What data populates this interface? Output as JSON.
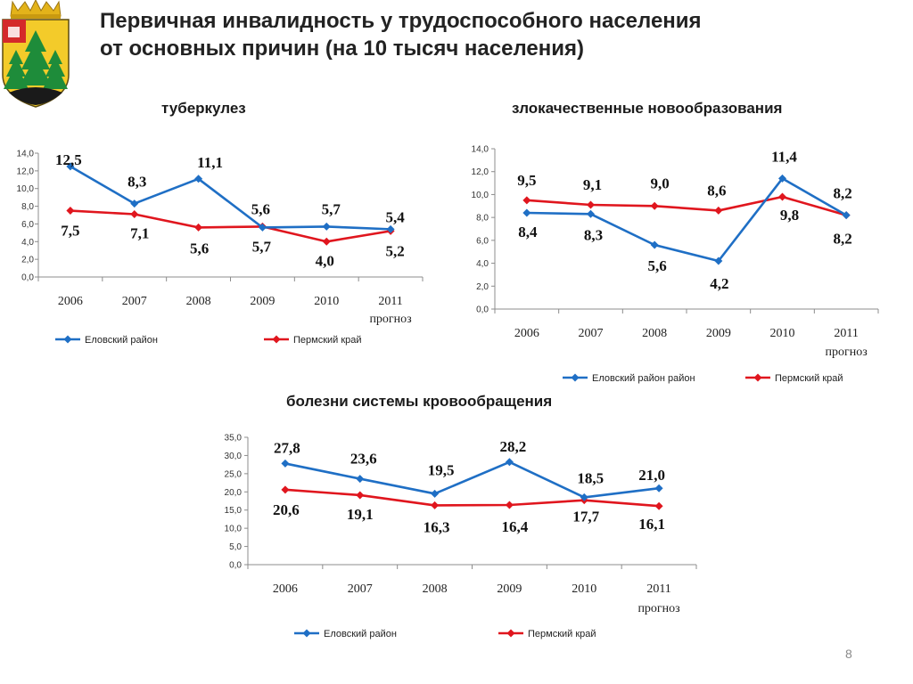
{
  "slide": {
    "title_lines": [
      "Первичная инвалидность у трудоспособного населения",
      "от основных причин (на 10 тысяч населения)"
    ],
    "page_number": "8"
  },
  "colors": {
    "blue": "#1F6FC5",
    "red": "#E0161E",
    "axis": "#8c8c8c"
  },
  "chart_data": [
    {
      "type": "line",
      "title": "туберкулез",
      "categories": [
        "2006",
        "2007",
        "2008",
        "2009",
        "2010",
        "2011"
      ],
      "category_sublabels": [
        "",
        "",
        "",
        "",
        "",
        "прогноз"
      ],
      "ylim": [
        0,
        14
      ],
      "y_ticks": [
        "0,0",
        "2,0",
        "4,0",
        "6,0",
        "8,0",
        "10,0",
        "12,0",
        "14,0"
      ],
      "grid": false,
      "legend_position": "bottom",
      "series": [
        {
          "name": "Еловский район",
          "values": [
            12.5,
            8.3,
            11.1,
            5.6,
            5.7,
            5.4
          ],
          "labels": [
            "12,5",
            "8,3",
            "11,1",
            "5,6",
            "5,7",
            "5,4"
          ]
        },
        {
          "name": "Пермский край",
          "values": [
            7.5,
            7.1,
            5.6,
            5.7,
            4.0,
            5.2
          ],
          "labels": [
            "7,5",
            "7,1",
            "5,6",
            "5,7",
            "4,0",
            "5,2"
          ]
        }
      ]
    },
    {
      "type": "line",
      "title": "злокачественные новообразования",
      "categories": [
        "2006",
        "2007",
        "2008",
        "2009",
        "2010",
        "2011"
      ],
      "category_sublabels": [
        "",
        "",
        "",
        "",
        "",
        "прогноз"
      ],
      "ylim": [
        0,
        14
      ],
      "y_ticks": [
        "0,0",
        "2,0",
        "4,0",
        "6,0",
        "8,0",
        "10,0",
        "12,0",
        "14,0"
      ],
      "grid": false,
      "legend_position": "bottom",
      "series": [
        {
          "name": "Еловский район район",
          "values": [
            8.4,
            8.3,
            5.6,
            4.2,
            11.4,
            8.2
          ],
          "labels": [
            "8,4",
            "8,3",
            "5,6",
            "4,2",
            "11,4",
            "8,2"
          ]
        },
        {
          "name": "Пермский край",
          "values": [
            9.5,
            9.1,
            9.0,
            8.6,
            9.8,
            8.2
          ],
          "labels": [
            "9,5",
            "9,1",
            "9,0",
            "8,6",
            "9,8",
            "8,2"
          ]
        }
      ]
    },
    {
      "type": "line",
      "title": "болезни системы кровообращения",
      "categories": [
        "2006",
        "2007",
        "2008",
        "2009",
        "2010",
        "2011"
      ],
      "category_sublabels": [
        "",
        "",
        "",
        "",
        "",
        "прогноз"
      ],
      "ylim": [
        0,
        35
      ],
      "y_ticks": [
        "0,0",
        "5,0",
        "10,0",
        "15,0",
        "20,0",
        "25,0",
        "30,0",
        "35,0"
      ],
      "grid": false,
      "legend_position": "bottom",
      "series": [
        {
          "name": "Еловский район",
          "values": [
            27.8,
            23.6,
            19.5,
            28.2,
            18.5,
            21.0
          ],
          "labels": [
            "27,8",
            "23,6",
            "19,5",
            "28,2",
            "18,5",
            "21,0"
          ]
        },
        {
          "name": "Пермский край",
          "values": [
            20.6,
            19.1,
            16.3,
            16.4,
            17.7,
            16.1
          ],
          "labels": [
            "20,6",
            "19,1",
            "16,3",
            "16,4",
            "17,7",
            "16,1"
          ]
        }
      ]
    }
  ]
}
